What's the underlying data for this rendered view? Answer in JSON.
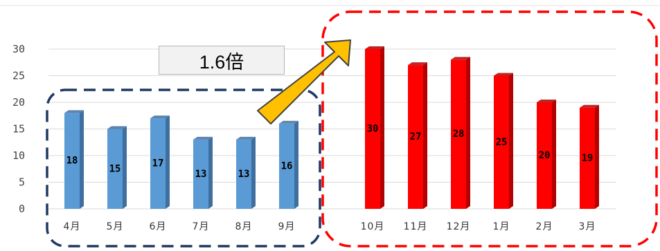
{
  "chart_data": {
    "type": "bar",
    "title": "",
    "xlabel": "",
    "ylabel": "",
    "ylim": [
      0,
      30
    ],
    "yticks": [
      0,
      5,
      10,
      15,
      20,
      25,
      30
    ],
    "grid": true,
    "categories": [
      "4月",
      "5月",
      "6月",
      "7月",
      "8月",
      "9月",
      "10月",
      "11月",
      "12月",
      "1月",
      "2月",
      "3月"
    ],
    "groups": [
      {
        "values": [
          18,
          15,
          17,
          13,
          13,
          16
        ],
        "color": "#5b9bd5",
        "side_color": "#3f6f9f",
        "box_color": "#1f3864"
      },
      {
        "values": [
          30,
          27,
          28,
          25,
          20,
          19
        ],
        "color": "#ff0000",
        "side_color": "#b30000",
        "box_color": "#ff0000"
      }
    ],
    "annotation": {
      "text": "1.6倍",
      "arrow_color": "#ffc000",
      "arrow_outline": "#404040"
    }
  }
}
